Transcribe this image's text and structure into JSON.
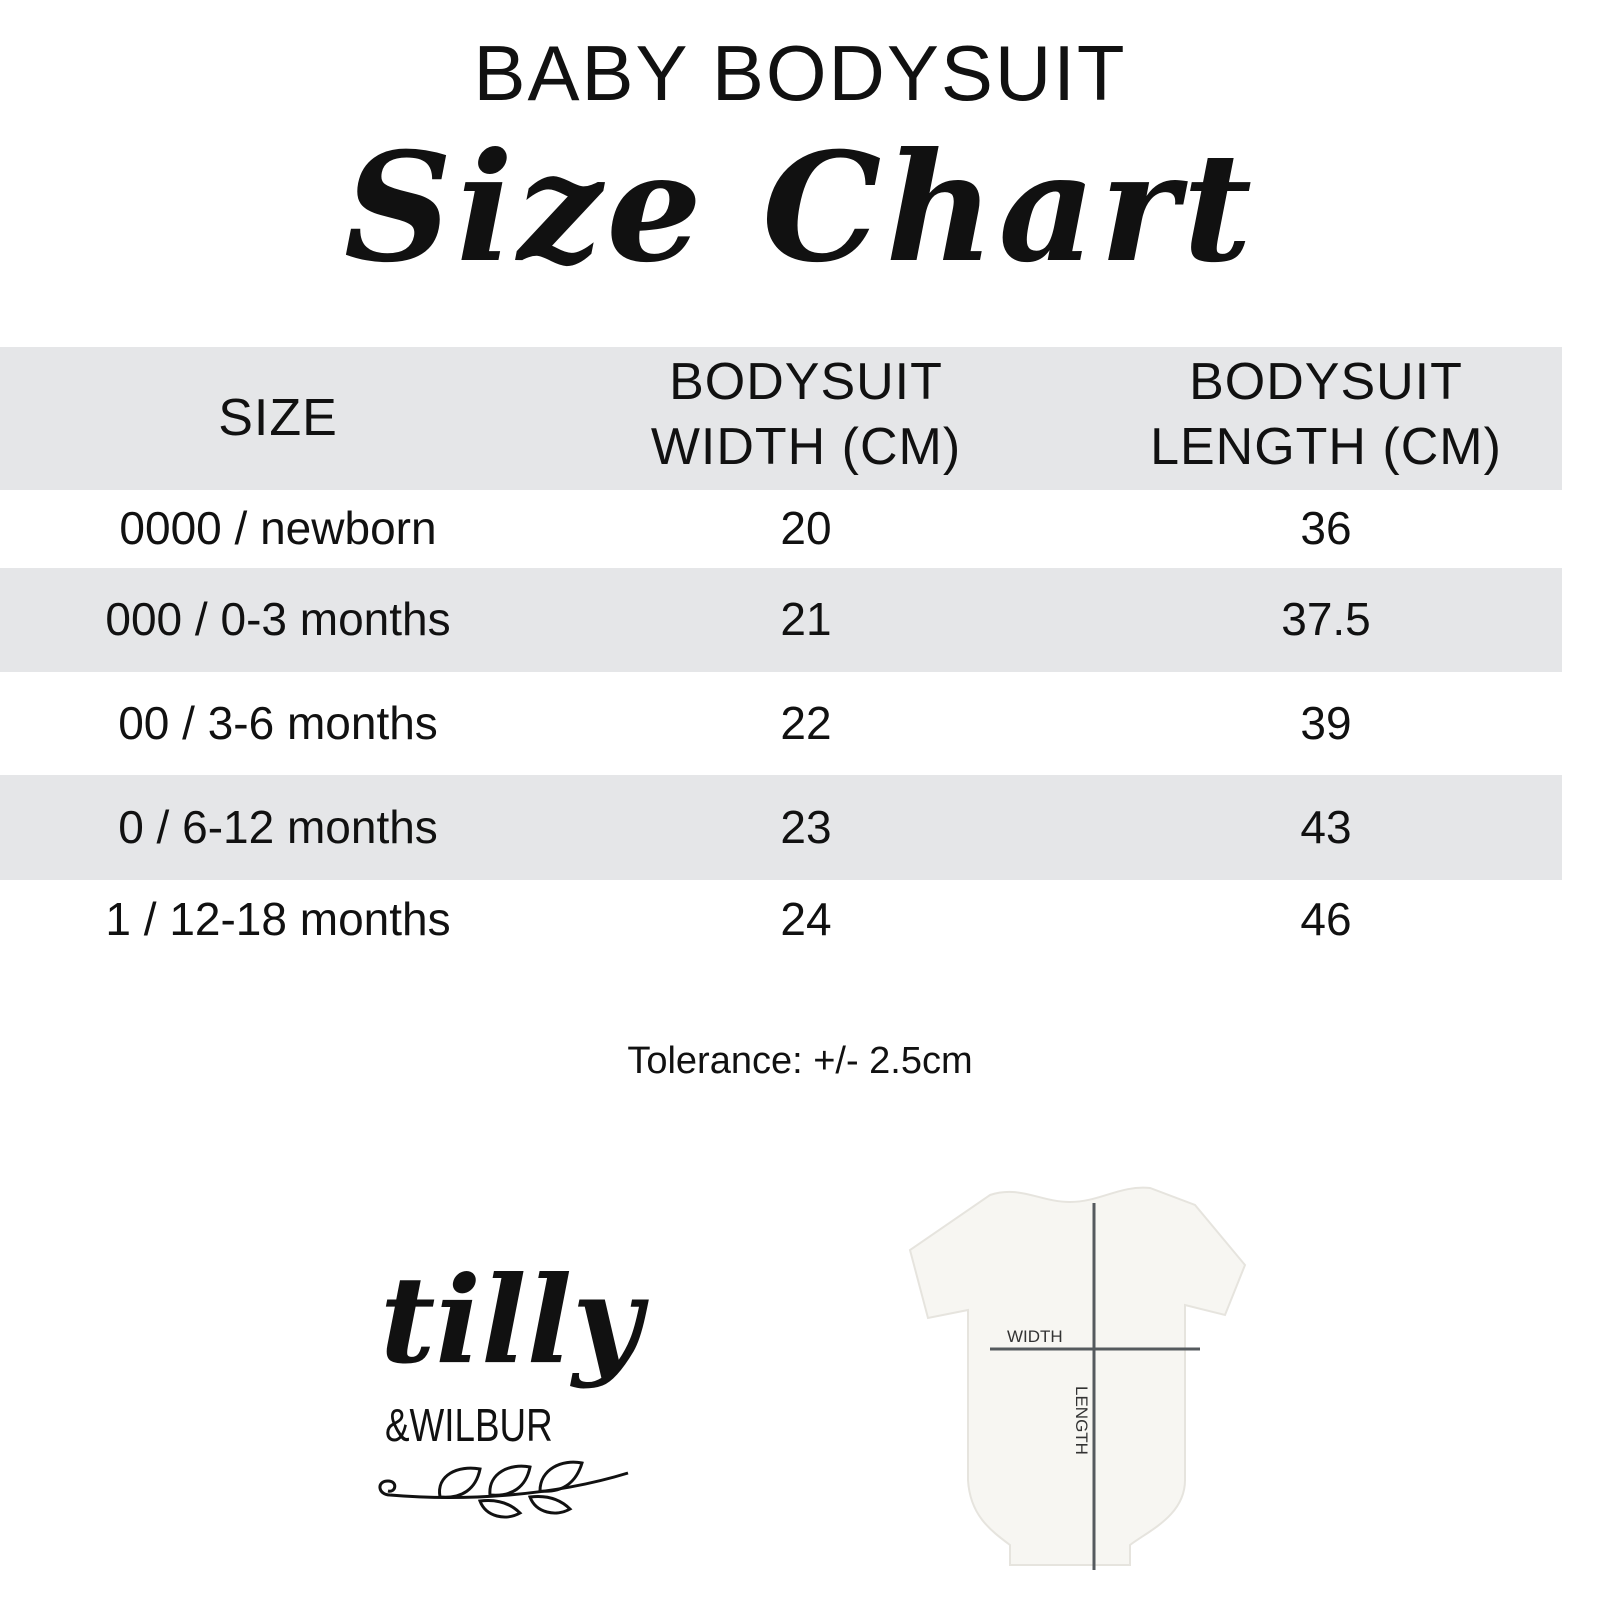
{
  "header": {
    "title": "BABY BODYSUIT",
    "subtitle": "Size Chart"
  },
  "table": {
    "columns": [
      "SIZE",
      "BODYSUIT WIDTH (CM)",
      "BODYSUIT LENGTH (CM)"
    ],
    "column_lines": [
      [
        "SIZE"
      ],
      [
        "BODYSUIT",
        "WIDTH (CM)"
      ],
      [
        "BODYSUIT",
        "LENGTH (CM)"
      ]
    ],
    "rows": [
      {
        "size": "0000 / newborn",
        "width": "20",
        "length": "36"
      },
      {
        "size": "000 / 0-3 months",
        "width": "21",
        "length": "37.5"
      },
      {
        "size": "00 / 3-6 months",
        "width": "22",
        "length": "39"
      },
      {
        "size": "0 / 6-12 months",
        "width": "23",
        "length": "43"
      },
      {
        "size": "1 / 12-18 months",
        "width": "24",
        "length": "46"
      }
    ],
    "stripe_color": "#e5e6e8"
  },
  "tolerance": "Tolerance: +/- 2.5cm",
  "logo": {
    "line1": "tilly",
    "line2": "&WILBUR"
  },
  "diagram": {
    "width_label": "WIDTH",
    "length_label": "LENGTH"
  }
}
